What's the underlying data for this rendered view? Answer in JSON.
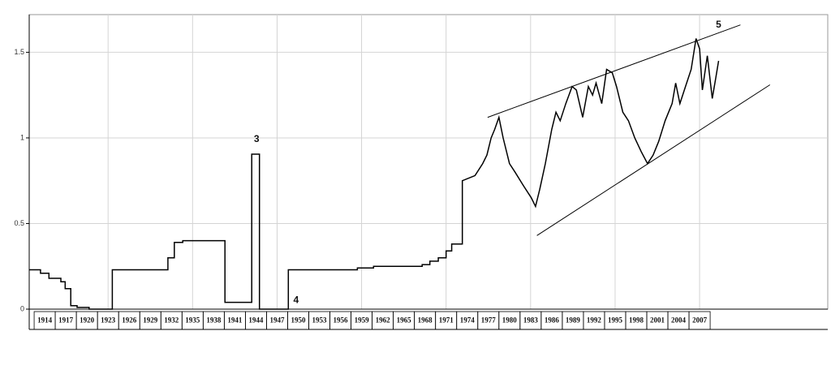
{
  "chart_data": {
    "type": "line",
    "color": "#000000",
    "grid": true,
    "x": [
      1911.8,
      1913.4,
      1913.4,
      1914.6,
      1914.6,
      1916.3,
      1916.3,
      1916.9,
      1916.9,
      1917.7,
      1917.7,
      1918.6,
      1918.6,
      1920.3,
      1920.3,
      1923.6,
      1923.6,
      1931.5,
      1931.5,
      1932.4,
      1932.4,
      1933.6,
      1933.6,
      1939.6,
      1939.6,
      1943.4,
      1943.4,
      1944.5,
      1944.5,
      1948.6,
      1948.6,
      1958.4,
      1958.4,
      1960.7,
      1960.7,
      1967.6,
      1967.6,
      1968.7,
      1968.7,
      1969.9,
      1969.9,
      1971.0,
      1971.0,
      1971.8,
      1971.8,
      1973.3,
      1973.3,
      1975.1,
      1976.2,
      1976.8,
      1977.4,
      1977.9,
      1978.5,
      1979.1,
      1980.0,
      1980.8,
      1982.0,
      1983.1,
      1983.7,
      1984.3,
      1985.1,
      1986.0,
      1986.6,
      1987.2,
      1988.0,
      1988.9,
      1989.5,
      1990.4,
      1991.2,
      1991.8,
      1992.3,
      1993.1,
      1993.8,
      1994.6,
      1995.2,
      1996.1,
      1996.9,
      1997.8,
      1998.7,
      1999.6,
      2000.4,
      2001.2,
      2002.1,
      2003.1,
      2003.6,
      2004.2,
      2005.0,
      2005.8,
      2006.5,
      2007.0,
      2007.4,
      2008.1,
      2008.8,
      2009.3,
      2009.7
    ],
    "values": [
      0.23,
      0.23,
      0.21,
      0.21,
      0.18,
      0.18,
      0.16,
      0.16,
      0.12,
      0.12,
      0.02,
      0.02,
      0.01,
      0.01,
      0,
      0,
      0.23,
      0.23,
      0.3,
      0.3,
      0.39,
      0.39,
      0.4,
      0.4,
      0.04,
      0.04,
      0.905,
      0.905,
      0,
      0,
      0.23,
      0.23,
      0.24,
      0.24,
      0.25,
      0.25,
      0.26,
      0.26,
      0.28,
      0.28,
      0.3,
      0.3,
      0.34,
      0.34,
      0.38,
      0.38,
      0.75,
      0.78,
      0.85,
      0.9,
      1.0,
      1.05,
      1.12,
      1.0,
      0.85,
      0.8,
      0.72,
      0.65,
      0.6,
      0.7,
      0.85,
      1.05,
      1.15,
      1.1,
      1.2,
      1.3,
      1.28,
      1.12,
      1.3,
      1.25,
      1.32,
      1.2,
      1.4,
      1.38,
      1.3,
      1.15,
      1.1,
      1.0,
      0.92,
      0.85,
      0.9,
      0.98,
      1.1,
      1.2,
      1.32,
      1.2,
      1.3,
      1.4,
      1.58,
      1.52,
      1.28,
      1.48,
      1.23,
      1.35,
      1.45
    ],
    "xlim": [
      1911.8,
      2025.2
    ],
    "xticks": [
      1914,
      1917,
      1920,
      1923,
      1926,
      1929,
      1932,
      1935,
      1938,
      1941,
      1944,
      1947,
      1950,
      1953,
      1956,
      1959,
      1962,
      1965,
      1968,
      1971,
      1974,
      1977,
      1980,
      1983,
      1986,
      1989,
      1992,
      1995,
      1998,
      2001,
      2004,
      2007
    ],
    "ylim": [
      0,
      1.72
    ],
    "yticks": [
      0,
      0.5,
      1,
      1.5
    ],
    "trendlines": [
      {
        "x": [
          1976.9,
          2012.8
        ],
        "values": [
          1.12,
          1.66
        ]
      },
      {
        "x": [
          1983.9,
          2017.0
        ],
        "values": [
          0.43,
          1.31
        ]
      }
    ],
    "annotations": [
      {
        "text": "3",
        "x": 1944.1,
        "y": 0.99
      },
      {
        "text": "4",
        "x": 1949.7,
        "y": 0.05
      },
      {
        "text": "5",
        "x": 2009.7,
        "y": 1.66
      }
    ]
  }
}
